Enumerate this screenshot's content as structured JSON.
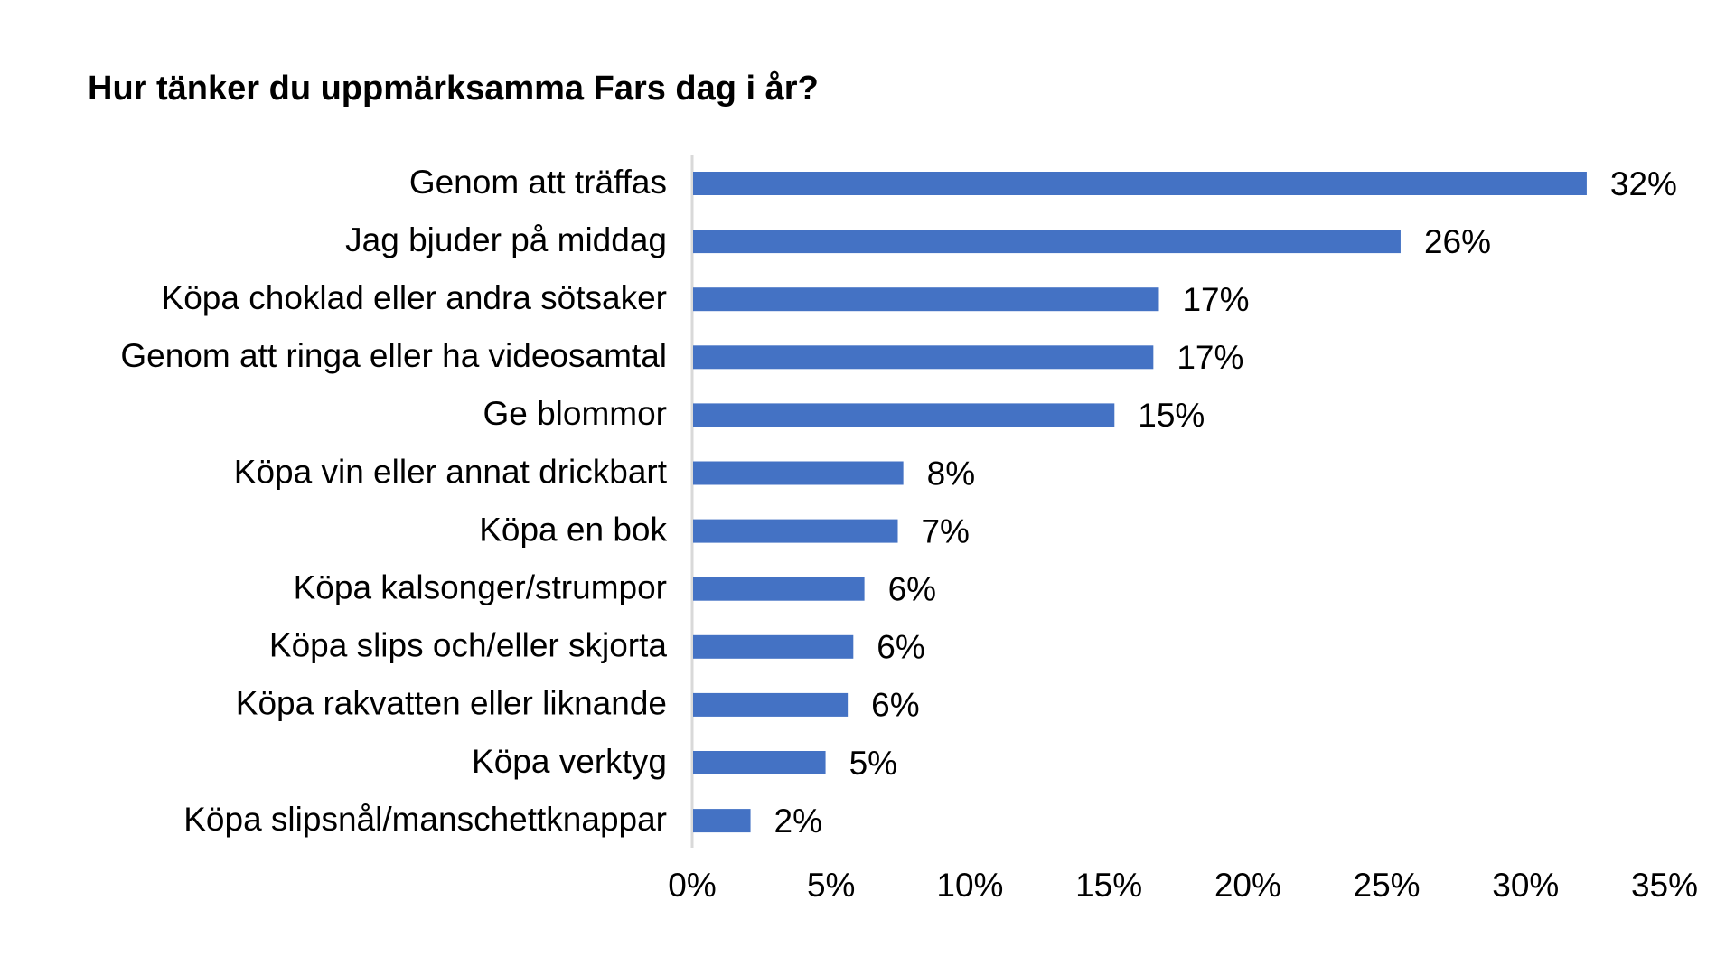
{
  "chart_data": {
    "type": "bar",
    "orientation": "horizontal",
    "title": "Hur tänker du uppmärksamma Fars dag i år?",
    "xlabel": "",
    "ylabel": "",
    "categories": [
      "Genom att träffas",
      "Jag bjuder på middag",
      "Köpa choklad eller andra sötsaker",
      "Genom att ringa eller ha videosamtal",
      "Ge blommor",
      "Köpa vin eller annat drickbart",
      "Köpa en bok",
      "Köpa kalsonger/strumpor",
      "Köpa slips och/eller skjorta",
      "Köpa rakvatten eller liknande",
      "Köpa verktyg",
      "Köpa slipsnål/manschettknappar"
    ],
    "values": [
      32.2,
      25.5,
      16.8,
      16.6,
      15.2,
      7.6,
      7.4,
      6.2,
      5.8,
      5.6,
      4.8,
      2.1
    ],
    "value_labels": [
      "32%",
      "26%",
      "17%",
      "17%",
      "15%",
      "8%",
      "7%",
      "6%",
      "6%",
      "6%",
      "5%",
      "2%"
    ],
    "xlim": [
      0,
      35
    ],
    "x_ticks": [
      0,
      5,
      10,
      15,
      20,
      25,
      30,
      35
    ],
    "x_tick_labels": [
      "0%",
      "5%",
      "10%",
      "15%",
      "20%",
      "25%",
      "30%",
      "35%"
    ],
    "grid": false,
    "legend": "none",
    "bar_color": "#4472c4",
    "axis_color": "#d9d9d9"
  }
}
